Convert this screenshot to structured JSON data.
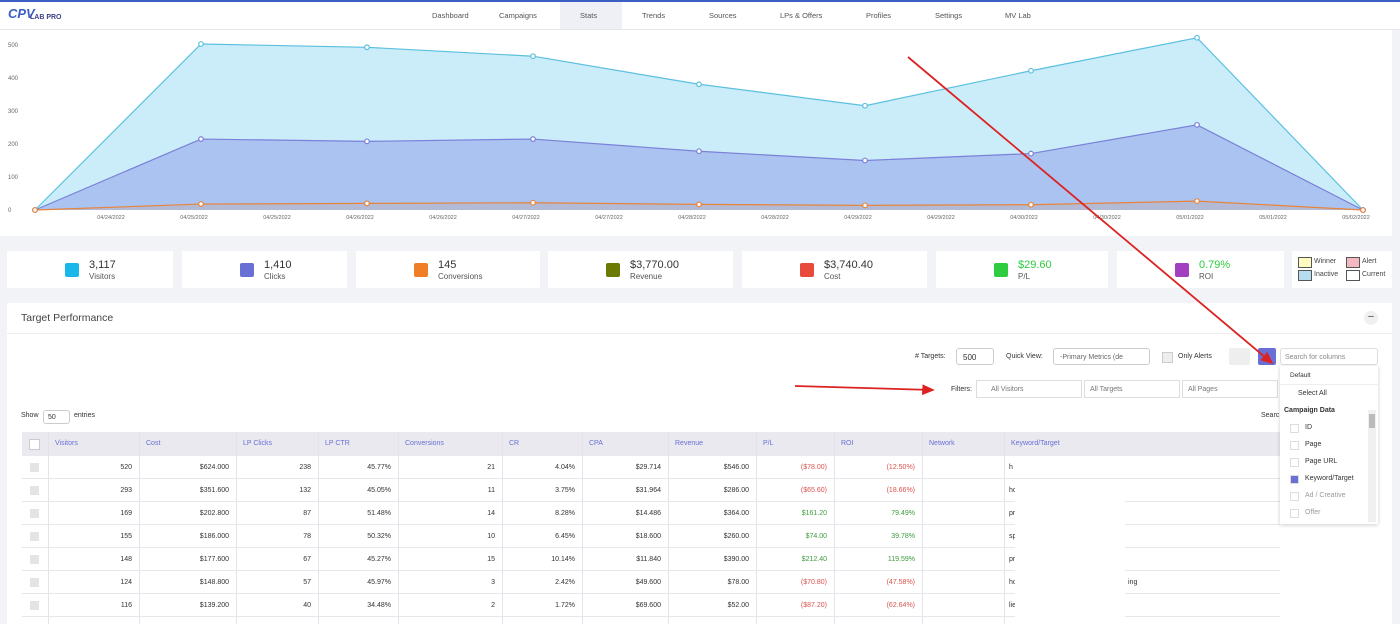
{
  "nav": {
    "logo_mark": "CPV",
    "logo": "LAB PRO",
    "items": [
      "Dashboard",
      "Campaigns",
      "Stats",
      "Trends",
      "Sources",
      "LPs & Offers",
      "Profiles",
      "Settings",
      "MV Lab"
    ],
    "active": 2
  },
  "chart_data": {
    "type": "area",
    "xticks": [
      "04/24/2022",
      "04/25/2022",
      "04/25/2022",
      "04/26/2022",
      "04/26/2022",
      "04/27/2022",
      "04/27/2022",
      "04/28/2022",
      "04/28/2022",
      "04/29/2022",
      "04/29/2022",
      "04/30/2022",
      "04/30/2022",
      "05/01/2022",
      "05/01/2022",
      "05/02/2022"
    ],
    "ylim": [
      0,
      500
    ],
    "yticks": [
      0,
      100,
      200,
      300,
      400,
      500
    ],
    "series": [
      {
        "color": "#5bc0de",
        "values": [
          0,
          503,
          493,
          466,
          381,
          316,
          422,
          522,
          0
        ]
      },
      {
        "color": "#7b80d8",
        "values": [
          0,
          215,
          208,
          215,
          178,
          150,
          171,
          258,
          0
        ]
      },
      {
        "color": "#e8843a",
        "values": [
          0,
          18,
          20,
          22,
          17,
          14,
          16,
          27,
          0
        ]
      }
    ]
  },
  "cards": [
    {
      "value": "3,117",
      "label": "Visitors",
      "color": "#1ab7ea"
    },
    {
      "value": "1,410",
      "label": "Clicks",
      "color": "#6a6fd6"
    },
    {
      "value": "145",
      "label": "Conversions",
      "color": "#f07e26"
    },
    {
      "value": "$3,770.00",
      "label": "Revenue",
      "color": "#6b7a00"
    },
    {
      "value": "$3,740.40",
      "label": "Cost",
      "color": "#e84b3c"
    },
    {
      "value": "$29.60",
      "label": "P/L",
      "color": "#2ecc40"
    },
    {
      "value": "0.79%",
      "label": "ROI",
      "color": "#a23fc1"
    }
  ],
  "legend": [
    {
      "label": "Winner",
      "color": "#fffbc0"
    },
    {
      "label": "Alert",
      "color": "#f6b8c0"
    },
    {
      "label": "Inactive",
      "color": "#b8dcef"
    },
    {
      "label": "Current",
      "color": "#ffffff"
    }
  ],
  "panel": {
    "title": "Target Performance",
    "targets_label": "# Targets:",
    "targets_value": "500",
    "quick_view_label": "Quick View:",
    "quick_view_value": "-Primary Metrics (de",
    "only_alerts": "Only Alerts",
    "search_columns": "Search for columns",
    "filters_label": "Filters:",
    "filters": [
      "All Visitors",
      "All Targets",
      "All Pages"
    ],
    "show": "Show",
    "show_value": "50",
    "entries": "entries",
    "search": "Searc"
  },
  "table": {
    "columns": [
      "Visitors",
      "Cost",
      "LP Clicks",
      "LP CTR",
      "Conversions",
      "CR",
      "CPA",
      "Revenue",
      "P/L",
      "ROI",
      "Network",
      "Keyword/Target"
    ],
    "rows": [
      [
        "520",
        "$624.000",
        "238",
        "45.77%",
        "21",
        "4.04%",
        "$29.714",
        "$546.00",
        "($78.00)",
        "(12.50%)",
        "h"
      ],
      [
        "293",
        "$351.600",
        "132",
        "45.05%",
        "11",
        "3.75%",
        "$31.964",
        "$286.00",
        "($65.60)",
        "(18.66%)",
        "hc"
      ],
      [
        "169",
        "$202.800",
        "87",
        "51.48%",
        "14",
        "8.28%",
        "$14.486",
        "$364.00",
        "$161.20",
        "79.49%",
        "pri"
      ],
      [
        "155",
        "$186.000",
        "78",
        "50.32%",
        "10",
        "6.45%",
        "$18.600",
        "$260.00",
        "$74.00",
        "39.78%",
        "sp"
      ],
      [
        "148",
        "$177.600",
        "67",
        "45.27%",
        "15",
        "10.14%",
        "$11.840",
        "$390.00",
        "$212.40",
        "119.59%",
        "pri"
      ],
      [
        "124",
        "$148.800",
        "57",
        "45.97%",
        "3",
        "2.42%",
        "$49.600",
        "$78.00",
        "($70.80)",
        "(47.58%)",
        "hc",
        "ing"
      ],
      [
        "116",
        "$139.200",
        "40",
        "34.48%",
        "2",
        "1.72%",
        "$69.600",
        "$52.00",
        "($87.20)",
        "(62.64%)",
        "lie"
      ]
    ]
  },
  "dropdown": {
    "default": "Default",
    "select_all": "Select All",
    "group": "Campaign Data",
    "items": [
      {
        "label": "ID",
        "checked": false
      },
      {
        "label": "Page",
        "checked": false
      },
      {
        "label": "Page URL",
        "checked": false
      },
      {
        "label": "Keyword/Target",
        "checked": true
      },
      {
        "label": "Ad / Creative",
        "checked": false
      },
      {
        "label": "Offer",
        "checked": false
      }
    ]
  }
}
